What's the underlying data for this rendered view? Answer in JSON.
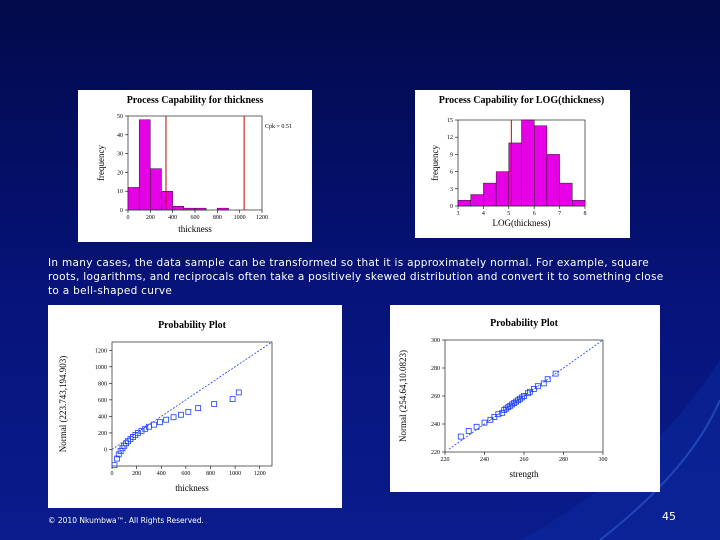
{
  "slide": {
    "text": "In many cases, the data sample can be transformed so that it is approximately normal. For example, square roots, logarithms, and reciprocals often take a positively skewed distribution and convert it to something close to a bell-shaped curve",
    "footer": "© 2010 Nkumbwa™. All Rights Reserved.",
    "page_number": "45"
  },
  "chart_data": [
    {
      "type": "histogram",
      "title": "Process Capability for thickness",
      "x_label": "thickness",
      "y_label": "frequency",
      "bins": [
        0,
        100,
        200,
        300,
        400,
        500,
        600,
        700,
        800,
        900,
        1000,
        1100,
        1200
      ],
      "values": [
        12,
        48,
        22,
        10,
        2,
        1,
        1,
        0,
        1,
        0,
        0,
        0
      ],
      "color": "#e600e6",
      "xlim": [
        0,
        1200
      ],
      "xticks": [
        0,
        200,
        400,
        600,
        800,
        1000,
        1200
      ],
      "ylim": [
        0,
        50
      ],
      "yticks": [
        0,
        10,
        20,
        30,
        40,
        50
      ],
      "spec_lines": [
        340,
        1040
      ],
      "spec_color": "#cc0000",
      "annotation": "Cpk = 0.51"
    },
    {
      "type": "histogram",
      "title": "Process Capability for LOG(thickness)",
      "x_label": "LOG(thickness)",
      "y_label": "frequency",
      "bins": [
        3,
        3.5,
        4,
        4.5,
        5,
        5.5,
        6,
        6.5,
        7,
        7.5,
        8
      ],
      "values": [
        1,
        2,
        4,
        6,
        11,
        15,
        14,
        9,
        4,
        1
      ],
      "color": "#e600e6",
      "xlim": [
        3,
        8
      ],
      "xticks": [
        3,
        4,
        5,
        6,
        7,
        8
      ],
      "ylim": [
        0,
        15
      ],
      "yticks": [
        0,
        3,
        6,
        9,
        12,
        15
      ],
      "spec_lines": [
        5.1
      ],
      "spec_color": "#cc0000"
    },
    {
      "type": "scatter",
      "title": "Probability Plot",
      "x_label": "thickness",
      "y_label": "Normal (223.743,194.903)",
      "x": [
        20,
        40,
        55,
        70,
        85,
        100,
        115,
        130,
        150,
        170,
        190,
        210,
        240,
        270,
        300,
        340,
        390,
        440,
        500,
        560,
        620,
        700,
        830,
        980,
        1030
      ],
      "values": [
        -190,
        -110,
        -60,
        -20,
        15,
        45,
        75,
        100,
        125,
        150,
        175,
        200,
        225,
        250,
        275,
        300,
        330,
        360,
        390,
        420,
        455,
        500,
        550,
        610,
        690
      ],
      "color": "#1a3cff",
      "xlim": [
        0,
        1300
      ],
      "xticks": [
        0,
        200,
        400,
        600,
        800,
        1000,
        1200
      ],
      "ylim": [
        -200,
        1300
      ],
      "yticks": [
        0,
        200,
        400,
        600,
        800,
        1000,
        1200
      ],
      "fit_line": {
        "x": [
          0,
          1300
        ],
        "y": [
          0,
          1300
        ]
      }
    },
    {
      "type": "scatter",
      "title": "Probability Plot",
      "x_label": "strength",
      "y_label": "Normal (254.64,10.0823)",
      "x": [
        228,
        232,
        236,
        240,
        243,
        245,
        247,
        249,
        250,
        251,
        252,
        253,
        254,
        255,
        256,
        257,
        258,
        259,
        260,
        262,
        263,
        265,
        267,
        270,
        272,
        276
      ],
      "values": [
        231,
        235,
        238,
        241,
        243,
        245,
        247,
        248,
        250,
        251,
        252,
        253,
        254,
        255,
        256,
        257,
        258,
        259,
        260,
        262,
        263,
        265,
        267,
        269,
        272,
        276
      ],
      "color": "#1a3cff",
      "xlim": [
        220,
        300
      ],
      "xticks": [
        220,
        240,
        260,
        280,
        300
      ],
      "ylim": [
        220,
        300
      ],
      "yticks": [
        220,
        240,
        260,
        280,
        300
      ],
      "fit_line": {
        "x": [
          222,
          300
        ],
        "y": [
          222,
          300
        ]
      }
    }
  ]
}
